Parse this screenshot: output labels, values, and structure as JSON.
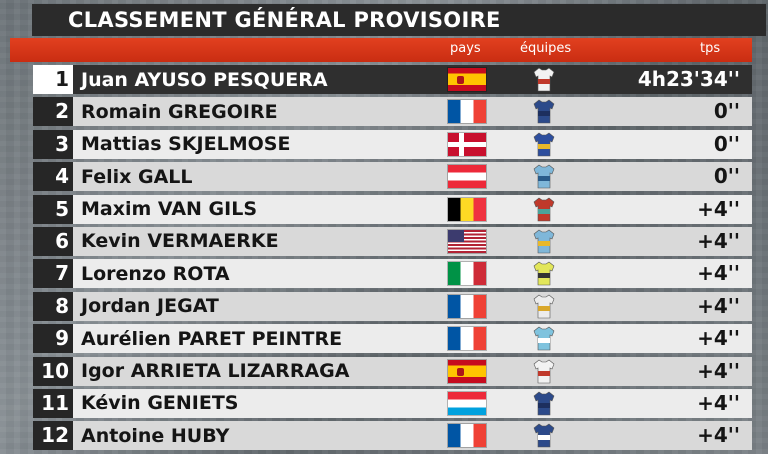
{
  "title": "CLASSEMENT GÉNÉRAL PROVISOIRE",
  "columns": {
    "pays": "pays",
    "equipes": "équipes",
    "tps": "tps"
  },
  "rows": [
    {
      "pos": "1",
      "name": "Juan AYUSO PESQUERA",
      "flag": "es",
      "jersey": {
        "body": "#f2f2f2",
        "accent": "#c0392b"
      },
      "time": "4h23'34''"
    },
    {
      "pos": "2",
      "name": "Romain GREGOIRE",
      "flag": "fr",
      "jersey": {
        "body": "#2c4a8a",
        "accent": "#1d2f5e"
      },
      "time": "0''"
    },
    {
      "pos": "3",
      "name": "Mattias SKJELMOSE",
      "flag": "dk",
      "jersey": {
        "body": "#2d4e9e",
        "accent": "#e8b82a"
      },
      "time": "0''"
    },
    {
      "pos": "4",
      "name": "Felix GALL",
      "flag": "at",
      "jersey": {
        "body": "#7fb7d9",
        "accent": "#2a5c8a"
      },
      "time": "0''"
    },
    {
      "pos": "5",
      "name": "Maxim VAN GILS",
      "flag": "be",
      "jersey": {
        "body": "#c0392b",
        "accent": "#4aa39a"
      },
      "time": "+4''"
    },
    {
      "pos": "6",
      "name": "Kevin VERMAERKE",
      "flag": "us",
      "jersey": {
        "body": "#7fb7d9",
        "accent": "#e8b82a"
      },
      "time": "+4''"
    },
    {
      "pos": "7",
      "name": "Lorenzo ROTA",
      "flag": "it",
      "jersey": {
        "body": "#e2e65a",
        "accent": "#333333"
      },
      "time": "+4''"
    },
    {
      "pos": "8",
      "name": "Jordan JEGAT",
      "flag": "fr",
      "jersey": {
        "body": "#ececec",
        "accent": "#d9a72a"
      },
      "time": "+4''"
    },
    {
      "pos": "9",
      "name": "Aurélien PARET PEINTRE",
      "flag": "fr",
      "jersey": {
        "body": "#7fc3de",
        "accent": "#ffffff"
      },
      "time": "+4''"
    },
    {
      "pos": "10",
      "name": "Igor ARRIETA LIZARRAGA",
      "flag": "es",
      "jersey": {
        "body": "#f2f2f2",
        "accent": "#c0392b"
      },
      "time": "+4''"
    },
    {
      "pos": "11",
      "name": "Kévin GENIETS",
      "flag": "lu",
      "jersey": {
        "body": "#2c4a8a",
        "accent": "#1d2f5e"
      },
      "time": "+4''"
    },
    {
      "pos": "12",
      "name": "Antoine HUBY",
      "flag": "fr",
      "jersey": {
        "body": "#2c4a8a",
        "accent": "#ffffff"
      },
      "time": "+4''"
    }
  ]
}
